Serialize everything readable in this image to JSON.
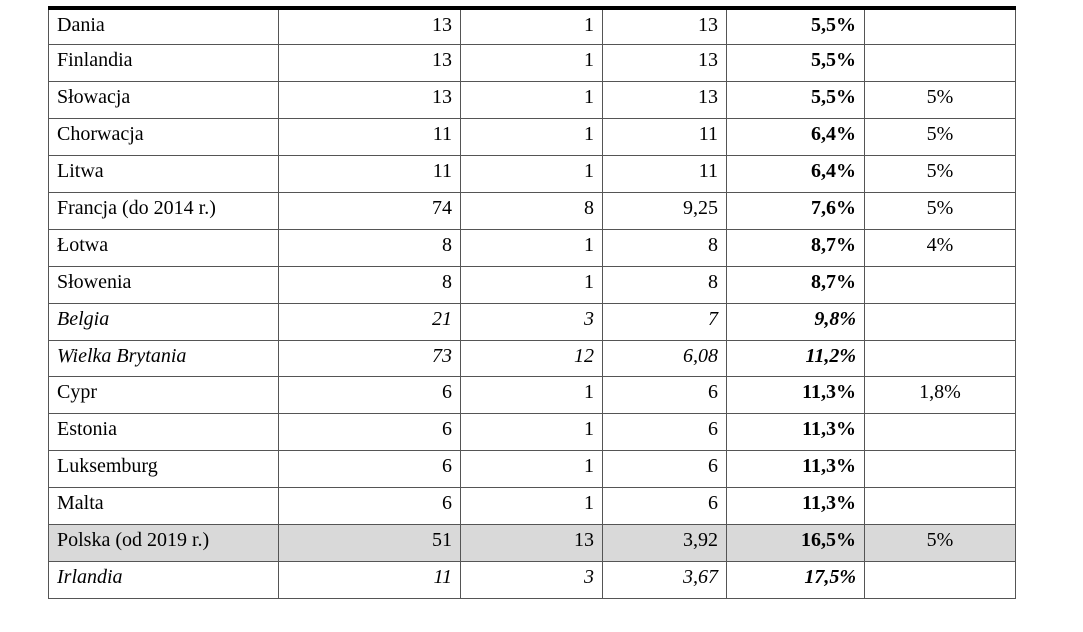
{
  "table": {
    "rows": [
      {
        "cells": [
          "Dania",
          "13",
          "1",
          "13",
          "5,5%"
        ]
      },
      {
        "cells": [
          "Finlandia",
          "13",
          "1",
          "13",
          "5,5%"
        ]
      },
      {
        "cells": [
          "Słowacja",
          "13",
          "1",
          "13",
          "5,5%",
          "5%"
        ]
      },
      {
        "cells": [
          "Chorwacja",
          "11",
          "1",
          "11",
          "6,4%",
          "5%"
        ]
      },
      {
        "cells": [
          "Litwa",
          "11",
          "1",
          "11",
          "6,4%",
          "5%"
        ]
      },
      {
        "cells": [
          "Francja (do 2014 r.)",
          "74",
          "8",
          "9,25",
          "7,6%",
          "5%"
        ]
      },
      {
        "cells": [
          "Łotwa",
          "8",
          "1",
          "8",
          "8,7%",
          "4%"
        ]
      },
      {
        "cells": [
          "Słowenia",
          "8",
          "1",
          "8",
          "8,7%"
        ]
      },
      {
        "cells": [
          "Belgia",
          "21",
          "3",
          "7",
          "9,8%"
        ],
        "italic": true
      },
      {
        "cells": [
          "Wielka Brytania",
          "73",
          "12",
          "6,08",
          "11,2%"
        ],
        "italic": true
      },
      {
        "cells": [
          "Cypr",
          "6",
          "1",
          "6",
          "11,3%",
          "1,8%"
        ]
      },
      {
        "cells": [
          "Estonia",
          "6",
          "1",
          "6",
          "11,3%"
        ]
      },
      {
        "cells": [
          "Luksemburg",
          "6",
          "1",
          "6",
          "11,3%"
        ]
      },
      {
        "cells": [
          "Malta",
          "6",
          "1",
          "6",
          "11,3%"
        ]
      },
      {
        "cells": [
          "Polska (od 2019 r.)",
          "51",
          "13",
          "3,92",
          "16,5%",
          "5%"
        ],
        "highlight": true
      },
      {
        "cells": [
          "Irlandia",
          "11",
          "3",
          "3,67",
          "17,5%"
        ],
        "italic": true
      }
    ]
  }
}
